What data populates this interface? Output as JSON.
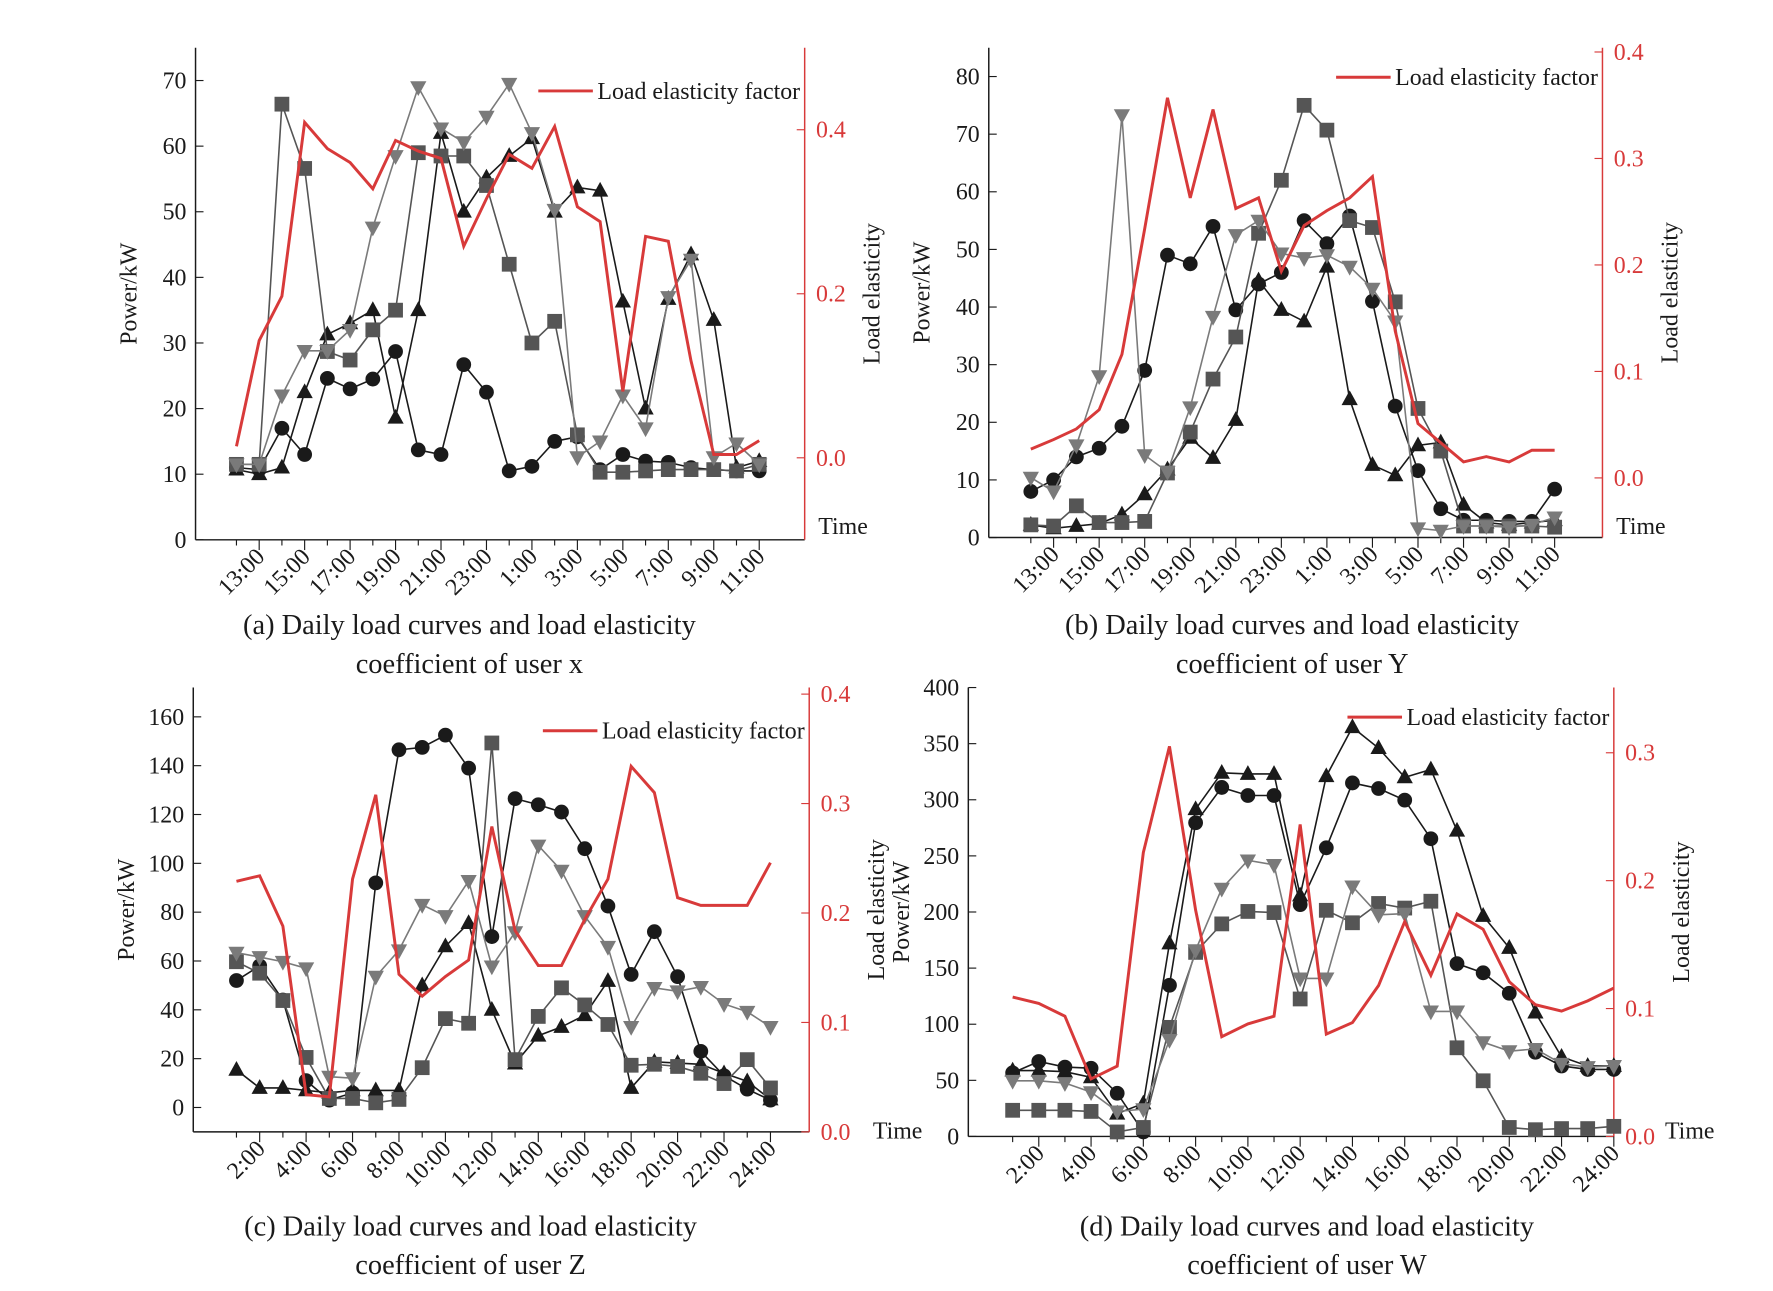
{
  "chart_data": [
    {
      "type": "line",
      "caption_lines": [
        "(a) Daily load curves and load elasticity",
        "coefficient of user x"
      ],
      "y_label": "Power/kW",
      "y2_label": "Load elasticity",
      "x_label": "Time",
      "legend": "upper right",
      "categories": [
        null,
        "13:00",
        null,
        "15:00",
        null,
        "17:00",
        null,
        "19:00",
        null,
        "21:00",
        null,
        "23:00",
        null,
        "1:00",
        null,
        "3:00",
        null,
        "5:00",
        null,
        "7:00",
        null,
        "9:00",
        null,
        "11:00"
      ],
      "ylim": [
        0,
        75
      ],
      "yticks": [
        0,
        10,
        20,
        30,
        40,
        50,
        60,
        70
      ],
      "y2lim": [
        -0.1,
        0.5
      ],
      "y2ticks": [
        {
          "value": 0,
          "label": "0.0"
        },
        0.2,
        0.4
      ],
      "series": [
        {
          "marker": "circle",
          "color": "#1a1a1a",
          "values": [
            11,
            10.7,
            17,
            13,
            24.6,
            23,
            24.5,
            28.7,
            13.7,
            13,
            26.7,
            22.5,
            10.5,
            11.2,
            15,
            15.7,
            10.7,
            13,
            12,
            11.8,
            11,
            10.7,
            10.5,
            10.5
          ]
        },
        {
          "marker": "triangle",
          "color": "#1a1a1a",
          "values": [
            10.7,
            10,
            11,
            22.5,
            31.3,
            33,
            35,
            18.6,
            35,
            62,
            50,
            55.2,
            58.5,
            61.2,
            50,
            53.7,
            53.2,
            36.3,
            20,
            36.7,
            43.5,
            33.5,
            11,
            12
          ]
        },
        {
          "marker": "square",
          "color": "#555555",
          "values": [
            11.5,
            11.5,
            66.4,
            56.6,
            28.7,
            27.4,
            32,
            35,
            59,
            58.5,
            58.5,
            54,
            42,
            30,
            33.3,
            16,
            10.3,
            10.3,
            10.5,
            10.7,
            10.7,
            10.7,
            10.5,
            11.5
          ]
        },
        {
          "marker": "down-triangle",
          "color": "#7a7a7a",
          "values": [
            11.5,
            11.5,
            22,
            28.8,
            28.8,
            32,
            47.6,
            58.5,
            69,
            62.7,
            60.6,
            64.5,
            69.5,
            62,
            50.3,
            12.6,
            15,
            22,
            17,
            37,
            42.7,
            12.6,
            14.7,
            11.5
          ]
        },
        {
          "name": "Load elasticity factor",
          "color": "#d83a3a",
          "axis": "y2",
          "values": [
            0.014,
            0.143,
            0.197,
            0.409,
            0.377,
            0.36,
            0.328,
            0.387,
            0.374,
            0.365,
            0.258,
            0.316,
            0.37,
            0.353,
            0.404,
            0.306,
            0.288,
            0.081,
            0.27,
            0.264,
            0.118,
            0.004,
            0.004,
            0.021
          ]
        }
      ]
    },
    {
      "type": "line",
      "caption_lines": [
        "(b) Daily load curves and load elasticity",
        "coefficient of user Y"
      ],
      "y_label": "Power/kW",
      "y2_label": "Load elasticity",
      "x_label": "Time",
      "legend": "upper right",
      "categories": [
        null,
        "13:00",
        null,
        "15:00",
        null,
        "17:00",
        null,
        "19:00",
        null,
        "21:00",
        null,
        "23:00",
        null,
        "1:00",
        null,
        "3:00",
        null,
        "5:00",
        null,
        "7:00",
        null,
        "9:00",
        null,
        "11:00"
      ],
      "ylim": [
        0,
        85
      ],
      "yticks": [
        0,
        10,
        20,
        30,
        40,
        50,
        60,
        70,
        80
      ],
      "y2lim": [
        -0.056,
        0.404
      ],
      "y2ticks": [
        {
          "value": 0,
          "label": "0.0"
        },
        0.1,
        0.2,
        0.3,
        0.4
      ],
      "series": [
        {
          "marker": "circle",
          "color": "#1a1a1a",
          "values": [
            8,
            10,
            14,
            15.5,
            19.3,
            29,
            49,
            47.5,
            54,
            39.5,
            44,
            46,
            55,
            51,
            55.8,
            41,
            22.8,
            11.6,
            5,
            3,
            3,
            2.8,
            2.8,
            8.4
          ]
        },
        {
          "marker": "triangle",
          "color": "#1a1a1a",
          "values": [
            2.2,
            1.6,
            2,
            2.4,
            4,
            7.5,
            11.8,
            17.3,
            13.8,
            20.4,
            44.6,
            39.5,
            37.5,
            47,
            24,
            12.6,
            10.8,
            16,
            16.5,
            5.7,
            2.6,
            2.2,
            2.6,
            3
          ]
        },
        {
          "marker": "square",
          "color": "#555555",
          "values": [
            2.2,
            2,
            5.5,
            2.6,
            2.6,
            2.8,
            11.2,
            18.3,
            27.5,
            34.8,
            52.8,
            62,
            75,
            70.7,
            55,
            53.8,
            40.9,
            22.4,
            15,
            2,
            2,
            2,
            2,
            1.8
          ]
        },
        {
          "marker": "down-triangle",
          "color": "#7a7a7a",
          "values": [
            10.4,
            8,
            16,
            28,
            73.3,
            14.3,
            11.4,
            22.6,
            38.3,
            52.5,
            55,
            49.3,
            48.5,
            49,
            47,
            43.2,
            37.5,
            1.6,
            1.2,
            2,
            2,
            1.8,
            2.2,
            3.5
          ]
        },
        {
          "name": "Load elasticity factor",
          "color": "#d83a3a",
          "axis": "y2",
          "values": [
            0.027,
            0.036,
            0.046,
            0.064,
            0.116,
            0.234,
            0.357,
            0.263,
            0.346,
            0.253,
            0.263,
            0.194,
            0.237,
            0.251,
            0.263,
            0.283,
            0.138,
            0.051,
            0.033,
            0.015,
            0.02,
            0.015,
            0.026,
            0.026
          ]
        }
      ]
    },
    {
      "type": "line",
      "caption_lines": [
        "(c) Daily load curves and load elasticity",
        "coefficient of user Z"
      ],
      "y_label": "Power/kW",
      "y2_label": "Load elasticity",
      "x_label": "Time",
      "legend": "upper right",
      "categories": [
        null,
        "2:00",
        null,
        "4:00",
        null,
        "6:00",
        null,
        "8:00",
        null,
        "10:00",
        null,
        "12:00",
        null,
        "14:00",
        null,
        "16:00",
        null,
        "18:00",
        null,
        "20:00",
        null,
        "22:00",
        null,
        "24:00"
      ],
      "ylim": [
        -10,
        172
      ],
      "yticks": [
        0,
        20,
        40,
        60,
        80,
        100,
        120,
        140,
        160
      ],
      "y2lim": [
        0,
        0.406
      ],
      "y2ticks": [
        {
          "value": 0,
          "label": "0.0"
        },
        0.1,
        0.2,
        0.3,
        0.4
      ],
      "series": [
        {
          "marker": "circle",
          "color": "#1a1a1a",
          "values": [
            52,
            58,
            44,
            11,
            3,
            6,
            92,
            146.5,
            147.5,
            152.5,
            139,
            70,
            126.5,
            124,
            121,
            106,
            82.5,
            54.5,
            72,
            53.6,
            23,
            13,
            7.5,
            3
          ]
        },
        {
          "marker": "triangle",
          "color": "#1a1a1a",
          "values": [
            15.4,
            8,
            8,
            7,
            6,
            7,
            7,
            7,
            50,
            66,
            75.5,
            40,
            18,
            29.4,
            33,
            37.8,
            51.8,
            8,
            18.7,
            18.2,
            17.7,
            14,
            10.7,
            3.3
          ]
        },
        {
          "marker": "square",
          "color": "#555555",
          "values": [
            59.7,
            55,
            43.8,
            20.5,
            3.7,
            3.7,
            1.9,
            3.3,
            16.3,
            36.4,
            34.5,
            149.3,
            19.6,
            37.3,
            49,
            42,
            34,
            17.3,
            17.7,
            16.8,
            14,
            9.8,
            19.6,
            8
          ]
        },
        {
          "marker": "down-triangle",
          "color": "#7a7a7a",
          "values": [
            63.4,
            61.6,
            59.7,
            57,
            12.6,
            12,
            53.6,
            64.4,
            83,
            78.4,
            92.8,
            57.8,
            71.8,
            107.3,
            97,
            78.4,
            65.8,
            33,
            49,
            47.6,
            49.4,
            42.4,
            39.2,
            33
          ]
        },
        {
          "name": "Load elasticity factor",
          "color": "#d83a3a",
          "axis": "y2",
          "values": [
            0.229,
            0.234,
            0.188,
            0.034,
            0.032,
            0.231,
            0.308,
            0.144,
            0.124,
            0.142,
            0.157,
            0.279,
            0.184,
            0.152,
            0.152,
            0.194,
            0.231,
            0.334,
            0.31,
            0.214,
            0.207,
            0.207,
            0.207,
            0.246
          ]
        }
      ]
    },
    {
      "type": "line",
      "caption_lines": [
        "(d) Daily load curves and load elasticity",
        "coefficient of user W"
      ],
      "y_label": "Power/kW",
      "y2_label": "Load elasticity",
      "x_label": "Time",
      "legend": "upper right",
      "categories": [
        null,
        "2:00",
        null,
        "4:00",
        null,
        "6:00",
        null,
        "8:00",
        null,
        "10:00",
        null,
        "12:00",
        null,
        "14:00",
        null,
        "16:00",
        null,
        "18:00",
        null,
        "20:00",
        null,
        "22:00",
        null,
        "24:00"
      ],
      "ylim": [
        0,
        400
      ],
      "yticks": [
        0,
        50,
        100,
        150,
        200,
        250,
        300,
        350,
        400
      ],
      "y2lim": [
        0,
        0.351
      ],
      "y2ticks": [
        {
          "value": 0,
          "label": "0.0"
        },
        0.1,
        0.2,
        0.3
      ],
      "series": [
        {
          "marker": "circle",
          "color": "#1a1a1a",
          "values": [
            56.7,
            66.8,
            61.8,
            60.8,
            38.5,
            4,
            134.7,
            279.5,
            311,
            303.8,
            303.8,
            206.6,
            257.2,
            315,
            310,
            299.7,
            265.3,
            154,
            145.8,
            127.6,
            75,
            62.8,
            59.7,
            59.7
          ]
        },
        {
          "marker": "triangle",
          "color": "#1a1a1a",
          "values": [
            58.7,
            58.7,
            57.7,
            52.7,
            20.3,
            29.4,
            172,
            291.6,
            324,
            323,
            323,
            214.7,
            321,
            364.6,
            346,
            320,
            327,
            272.4,
            196.5,
            168,
            110.4,
            70.9,
            62.8,
            62.8
          ]
        },
        {
          "marker": "square",
          "color": "#555555",
          "values": [
            23.3,
            23.3,
            23.3,
            22.3,
            4,
            8,
            97.2,
            164,
            189.4,
            200.5,
            199.5,
            122.5,
            201.5,
            190.4,
            207.6,
            203.5,
            209.6,
            79,
            49.6,
            8,
            6,
            7,
            7,
            9
          ]
        },
        {
          "marker": "down-triangle",
          "color": "#7a7a7a",
          "values": [
            49.6,
            49.6,
            47.6,
            39.5,
            22.3,
            24.3,
            86,
            166,
            220.8,
            246,
            242,
            140.8,
            140.8,
            222.8,
            197.5,
            198.5,
            111.4,
            111.4,
            84,
            76,
            78,
            64.8,
            61.8,
            62.8
          ]
        },
        {
          "name": "Load elasticity factor",
          "color": "#d83a3a",
          "axis": "y2",
          "values": [
            0.109,
            0.104,
            0.094,
            0.045,
            0.055,
            0.222,
            0.305,
            0.177,
            0.078,
            0.088,
            0.094,
            0.244,
            0.08,
            0.089,
            0.118,
            0.168,
            0.126,
            0.174,
            0.162,
            0.121,
            0.103,
            0.098,
            0.106,
            0.116
          ]
        }
      ]
    }
  ]
}
